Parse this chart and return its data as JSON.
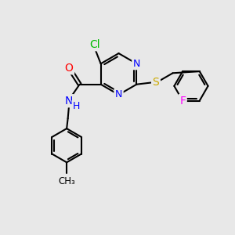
{
  "bg_color": "#e8e8e8",
  "bond_color": "#000000",
  "bond_width": 1.5,
  "atom_colors": {
    "N": "#0000ff",
    "O": "#ff0000",
    "S": "#ccaa00",
    "Cl": "#00bb00",
    "F": "#ff00ff",
    "C": "#000000",
    "H": "#0000ff"
  },
  "font_size": 9,
  "fig_width": 3.0,
  "fig_height": 3.0,
  "dpi": 100
}
